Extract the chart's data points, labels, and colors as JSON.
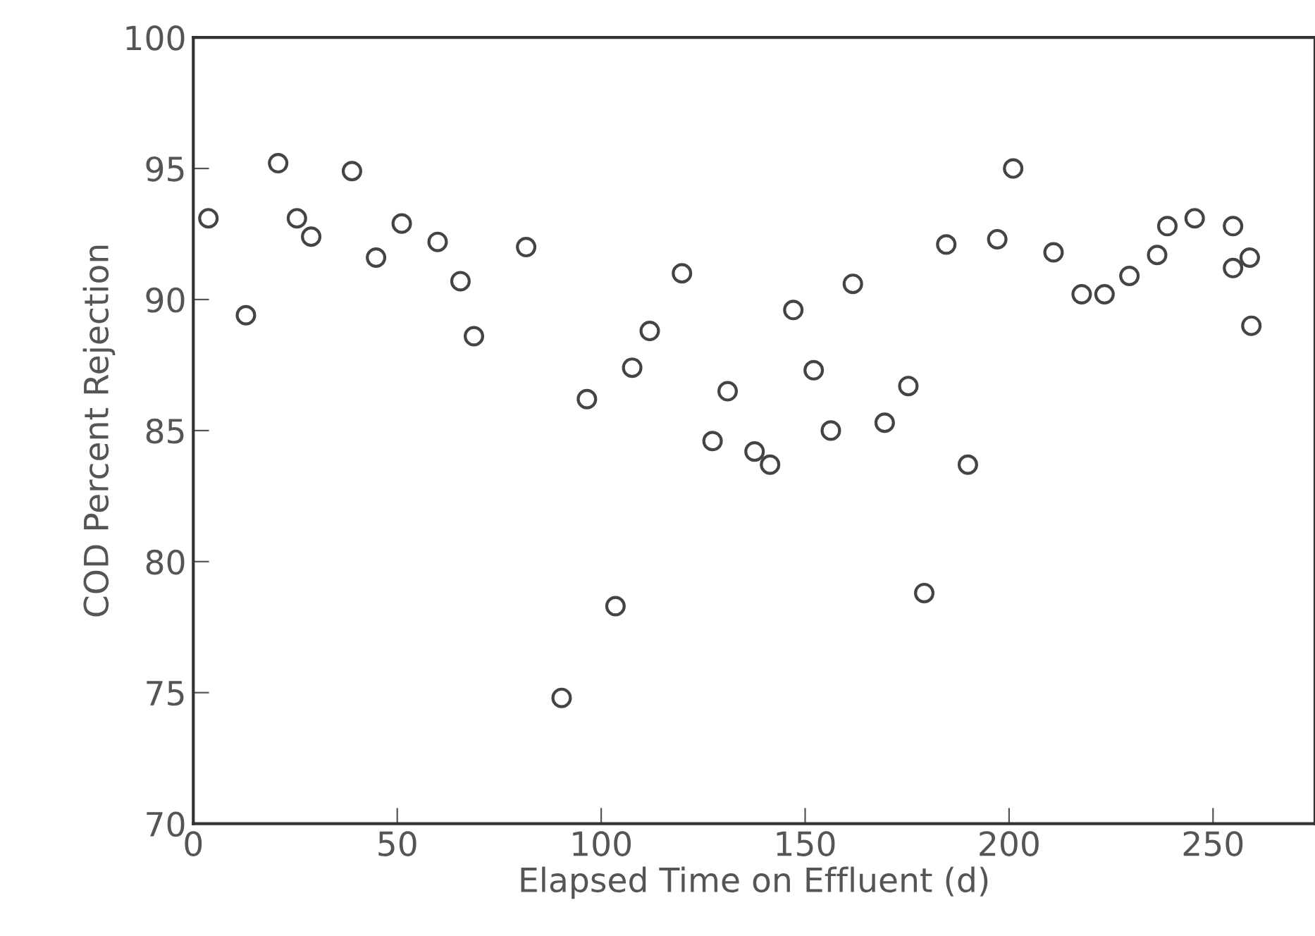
{
  "chart_data": {
    "type": "scatter",
    "xlabel": "Elapsed Time on Effluent (d)",
    "ylabel": "COD Percent Rejection",
    "x": [
      3.7,
      12.9,
      20.8,
      25.4,
      28.9,
      38.9,
      44.8,
      51.1,
      59.9,
      65.5,
      68.8,
      81.6,
      90.3,
      96.5,
      103.5,
      107.6,
      111.9,
      119.8,
      127.3,
      131,
      137.6,
      141.4,
      147.1,
      152.1,
      156.3,
      161.7,
      169.5,
      175.3,
      179.2,
      184.6,
      189.9,
      197.1,
      201,
      210.9,
      217.8,
      223.4,
      229.5,
      236.3,
      238.8,
      245.5,
      254.9,
      254.9,
      259,
      259.4
    ],
    "values": [
      93.1,
      89.4,
      95.2,
      93.1,
      92.4,
      94.9,
      91.6,
      92.9,
      92.2,
      90.7,
      88.6,
      92.0,
      74.8,
      86.2,
      78.3,
      87.4,
      88.8,
      91.0,
      84.6,
      86.5,
      84.2,
      83.7,
      89.6,
      87.3,
      85.0,
      90.6,
      85.3,
      86.7,
      78.8,
      92.1,
      83.7,
      92.3,
      95.0,
      91.8,
      90.2,
      90.2,
      90.9,
      91.7,
      92.8,
      93.1,
      92.8,
      91.2,
      91.6,
      89.0
    ],
    "color": "#444444",
    "marker": "circle",
    "xlim": [
      0,
      275
    ],
    "ylim": [
      70,
      100
    ],
    "xticks": [
      0,
      50,
      100,
      150,
      200,
      250
    ],
    "yticks": [
      70,
      75,
      80,
      85,
      90,
      95,
      100
    ],
    "grid": false
  }
}
